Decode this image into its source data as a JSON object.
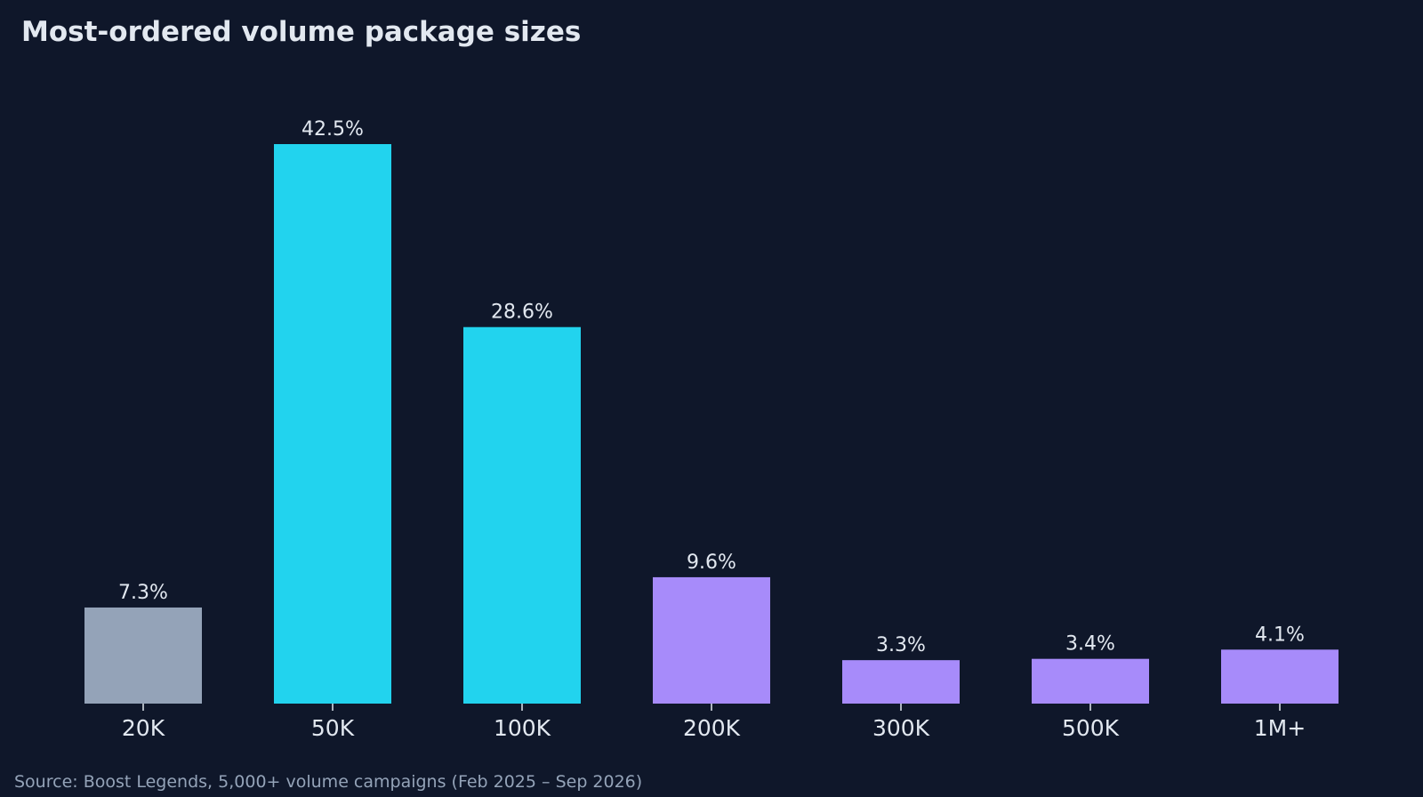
{
  "chart_data": {
    "type": "bar",
    "title": "Most-ordered volume package sizes",
    "xlabel": "",
    "ylabel": "",
    "categories": [
      "20K",
      "50K",
      "100K",
      "200K",
      "300K",
      "500K",
      "1M+"
    ],
    "values": [
      7.3,
      42.5,
      28.6,
      9.6,
      3.3,
      3.4,
      4.1
    ],
    "value_labels": [
      "7.3%",
      "42.5%",
      "28.6%",
      "9.6%",
      "3.3%",
      "3.4%",
      "4.1%"
    ],
    "bar_colors": [
      "#94a3b8",
      "#22d3ee",
      "#22d3ee",
      "#a78bfa",
      "#a78bfa",
      "#a78bfa",
      "#a78bfa"
    ],
    "ylim": [
      0,
      42.5
    ],
    "grid": false,
    "legend": "none",
    "source": "Source: Boost Legends, 5,000+ volume campaigns (Feb 2025 – Sep 2026)"
  },
  "colors": {
    "background": "#0f172a",
    "text": "#e2e8f0",
    "muted_text": "#94a3b8"
  }
}
